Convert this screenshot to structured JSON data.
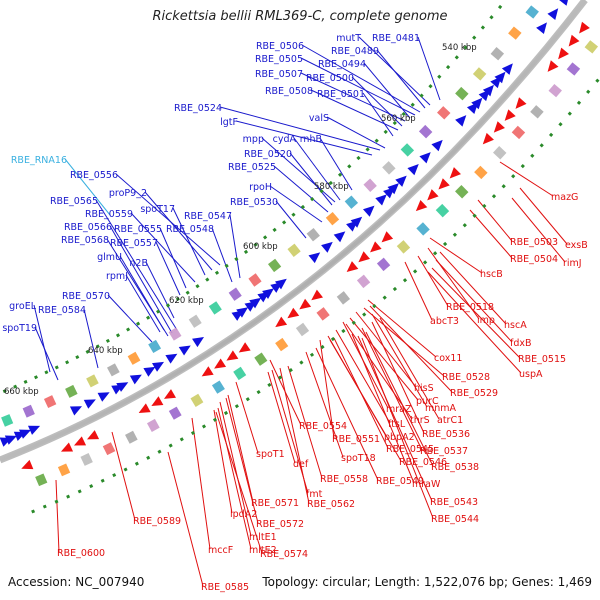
{
  "title": "Rickettsia bellii RML369-C, complete genome",
  "accession": "Accession: NC_007940",
  "summary": "Topology: circular; Length: 1,522,076 bp; Genes: 1,469",
  "colors": {
    "forward_label": "#1a1acc",
    "reverse_label": "#e01010",
    "rna_label": "#3ab0e0",
    "forward_arrow": "#1010dd",
    "reverse_arrow": "#ee1111",
    "backbone": "#888888",
    "tick": "#2a8a2a"
  },
  "position_labels": [
    "540 kbp",
    "560 kbp",
    "580 kbp",
    "600 kbp",
    "620 kbp",
    "640 kbp",
    "660 kbp"
  ],
  "forward_labels": [
    "RBE_0481",
    "mutT",
    "RBE_0489",
    "RBE_0506",
    "RBE_0505",
    "RBE_0494",
    "RBE_0507",
    "RBE_0500",
    "RBE_0508",
    "RBE_0501",
    "RBE_0524",
    "lgtF",
    "valS",
    "mpp",
    "cydA",
    "rnhB",
    "RBE_0520",
    "RBE_0525",
    "rpoH",
    "RBE_0530",
    "RBE_0556",
    "proP9_2",
    "RBE_0565",
    "spoT17",
    "RBE_0559",
    "RBE_0547",
    "RBE_0566",
    "RBE_0555",
    "RBE_0548",
    "RBE_0568",
    "RBE_0557",
    "glmU",
    "n2B",
    "rpmJ",
    "RBE_0570",
    "groEL",
    "RBE_0584",
    "spoT19"
  ],
  "rna_labels": [
    "RBE_RNA16"
  ],
  "reverse_labels": [
    "mazG",
    "RBE_0503",
    "exsB",
    "RBE_0504",
    "rimJ",
    "hscB",
    "RBE_0518",
    "abcT3",
    "imp",
    "hscA",
    "fdxB",
    "RBE_0515",
    "uspA",
    "cox11",
    "RBE_0528",
    "hisS",
    "RBE_0529",
    "purC",
    "mnmA",
    "mraZ",
    "thrS",
    "atrC1",
    "ftsL",
    "RBE_0536",
    "RBE_0554",
    "RBE_0551",
    "pbpA2",
    "RBE_0545",
    "RBE_0537",
    "spoT18",
    "RBE_0546",
    "RBE_0538",
    "spoT1",
    "def",
    "RBE_0549",
    "mraW",
    "RBE_0558",
    "fmt",
    "RBE_0543",
    "RBE_0562",
    "RBE_0571",
    "RBE_0544",
    "lpdA2",
    "RBE_0589",
    "RBE_0572",
    "mltE1",
    "mltE2",
    "mccF",
    "RBE_0574",
    "RBE_0600",
    "RBE_0585"
  ]
}
